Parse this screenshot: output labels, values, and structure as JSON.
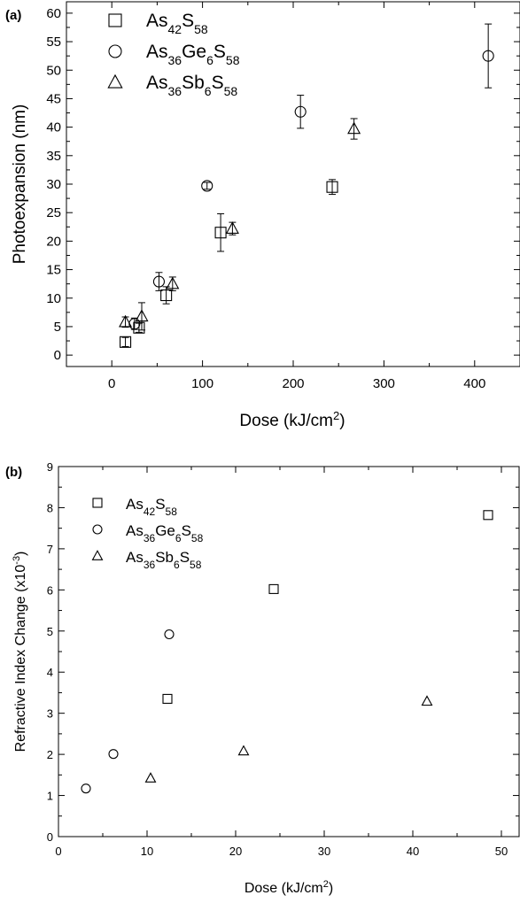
{
  "chart_data": [
    {
      "panel_label": "(a)",
      "type": "scatter",
      "xlabel": "Dose (kJ/cm",
      "xlabel_sup": "2",
      "xlabel_end": ")",
      "ylabel": "Photoexpansion (nm)",
      "xlim": [
        -50,
        450
      ],
      "ylim": [
        -2,
        62
      ],
      "xticks": [
        0,
        100,
        200,
        300,
        400
      ],
      "yticks": [
        0,
        5,
        10,
        15,
        20,
        25,
        30,
        35,
        40,
        45,
        50,
        55,
        60
      ],
      "legend_position": "top-left",
      "series": [
        {
          "marker": "square",
          "label_parts": [
            [
              "As",
              ""
            ],
            [
              "42",
              "sub"
            ],
            [
              "S",
              ""
            ],
            [
              "58",
              "sub"
            ]
          ],
          "points": [
            {
              "x": 15,
              "y": 2.3,
              "err": 0.8
            },
            {
              "x": 30,
              "y": 4.8,
              "err": 0.8
            },
            {
              "x": 60,
              "y": 10.5,
              "err": 1.5
            },
            {
              "x": 120,
              "y": 21.5,
              "err": 3.3
            },
            {
              "x": 243,
              "y": 29.5,
              "err": 1.3
            }
          ]
        },
        {
          "marker": "circle",
          "label_parts": [
            [
              "As",
              ""
            ],
            [
              "36",
              "sub"
            ],
            [
              "Ge",
              ""
            ],
            [
              "6",
              "sub"
            ],
            [
              "S",
              ""
            ],
            [
              "58",
              "sub"
            ]
          ],
          "points": [
            {
              "x": 25,
              "y": 5.5,
              "err": 1.0
            },
            {
              "x": 52,
              "y": 12.9,
              "err": 1.6
            },
            {
              "x": 105,
              "y": 29.7,
              "err": 0.6
            },
            {
              "x": 208,
              "y": 42.7,
              "err": 2.9
            },
            {
              "x": 415,
              "y": 52.5,
              "err": 5.6
            }
          ]
        },
        {
          "marker": "triangle",
          "label_parts": [
            [
              "As",
              ""
            ],
            [
              "36",
              "sub"
            ],
            [
              "Sb",
              ""
            ],
            [
              "6",
              "sub"
            ],
            [
              "S",
              ""
            ],
            [
              "58",
              "sub"
            ]
          ],
          "points": [
            {
              "x": 15,
              "y": 5.8,
              "err": 0.9
            },
            {
              "x": 33,
              "y": 6.8,
              "err": 2.4
            },
            {
              "x": 67,
              "y": 12.5,
              "err": 1.2
            },
            {
              "x": 133,
              "y": 22.2,
              "err": 1.1
            },
            {
              "x": 267,
              "y": 39.7,
              "err": 1.8
            }
          ]
        }
      ]
    },
    {
      "panel_label": "(b)",
      "type": "scatter",
      "xlabel": "Dose (kJ/cm",
      "xlabel_sup": "2",
      "xlabel_end": ")",
      "ylabel": "Refractive Index Change (x10",
      "ylabel_sup": "-3",
      "ylabel_end": ")",
      "xlim": [
        0,
        52
      ],
      "ylim": [
        0,
        9
      ],
      "xticks": [
        0,
        10,
        20,
        30,
        40,
        50
      ],
      "yticks": [
        0,
        1,
        2,
        3,
        4,
        5,
        6,
        7,
        8,
        9
      ],
      "legend_position": "top-left",
      "series": [
        {
          "marker": "square",
          "label_parts": [
            [
              "As",
              ""
            ],
            [
              "42",
              "sub"
            ],
            [
              "S",
              ""
            ],
            [
              "58",
              "sub"
            ]
          ],
          "points": [
            {
              "x": 12.3,
              "y": 3.35
            },
            {
              "x": 24.3,
              "y": 6.02
            },
            {
              "x": 48.5,
              "y": 7.82
            }
          ]
        },
        {
          "marker": "circle",
          "label_parts": [
            [
              "As",
              ""
            ],
            [
              "36",
              "sub"
            ],
            [
              "Ge",
              ""
            ],
            [
              "6",
              "sub"
            ],
            [
              "S",
              ""
            ],
            [
              "58",
              "sub"
            ]
          ],
          "points": [
            {
              "x": 3.1,
              "y": 1.17
            },
            {
              "x": 6.2,
              "y": 2.01
            },
            {
              "x": 12.5,
              "y": 4.92
            }
          ]
        },
        {
          "marker": "triangle",
          "label_parts": [
            [
              "As",
              ""
            ],
            [
              "36",
              "sub"
            ],
            [
              "Sb",
              ""
            ],
            [
              "6",
              "sub"
            ],
            [
              "S",
              ""
            ],
            [
              "58",
              "sub"
            ]
          ],
          "points": [
            {
              "x": 10.4,
              "y": 1.42
            },
            {
              "x": 20.9,
              "y": 2.08
            },
            {
              "x": 41.6,
              "y": 3.29
            }
          ]
        }
      ]
    }
  ]
}
